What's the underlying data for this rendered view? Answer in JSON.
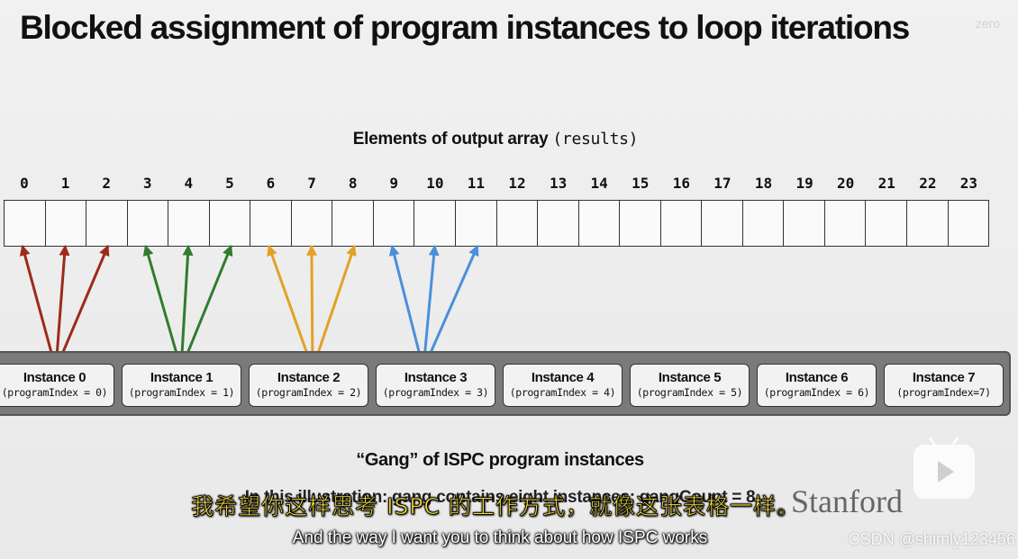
{
  "slide": {
    "title": "Blocked assignment of program instances to loop iterations",
    "array_caption_text": "Elements of output array ",
    "array_caption_code": "(results)",
    "gang_caption": "“Gang” of ISPC program instances",
    "gang_note": "In this illustration: gang contains eight instances: gangCount = 8",
    "logo_text": "Stanford"
  },
  "array": {
    "indices": [
      "0",
      "1",
      "2",
      "3",
      "4",
      "5",
      "6",
      "7",
      "8",
      "9",
      "10",
      "11",
      "12",
      "13",
      "14",
      "15",
      "16",
      "17",
      "18",
      "19",
      "20",
      "21",
      "22",
      "23"
    ]
  },
  "instances": [
    {
      "name": "Instance 0",
      "index_label": "(programIndex = 0)",
      "color": "#9e2a1b"
    },
    {
      "name": "Instance 1",
      "index_label": "(programIndex = 1)",
      "color": "#2e7d2e"
    },
    {
      "name": "Instance 2",
      "index_label": "(programIndex = 2)",
      "color": "#e3a125"
    },
    {
      "name": "Instance 3",
      "index_label": "(programIndex = 3)",
      "color": "#4a90d9"
    },
    {
      "name": "Instance 4",
      "index_label": "(programIndex = 4)",
      "color": ""
    },
    {
      "name": "Instance 5",
      "index_label": "(programIndex = 5)",
      "color": ""
    },
    {
      "name": "Instance 6",
      "index_label": "(programIndex = 6)",
      "color": ""
    },
    {
      "name": "Instance 7",
      "index_label": "(programIndex=7)",
      "color": ""
    }
  ],
  "subtitles": {
    "chinese": "我希望你这样思考 ISPC 的工作方式，就像这张表格一样。",
    "english": "And the way I want you to think about how ISPC works"
  },
  "watermarks": {
    "top_right": "zero",
    "bottom_right": "CSDN @shimly123456"
  }
}
